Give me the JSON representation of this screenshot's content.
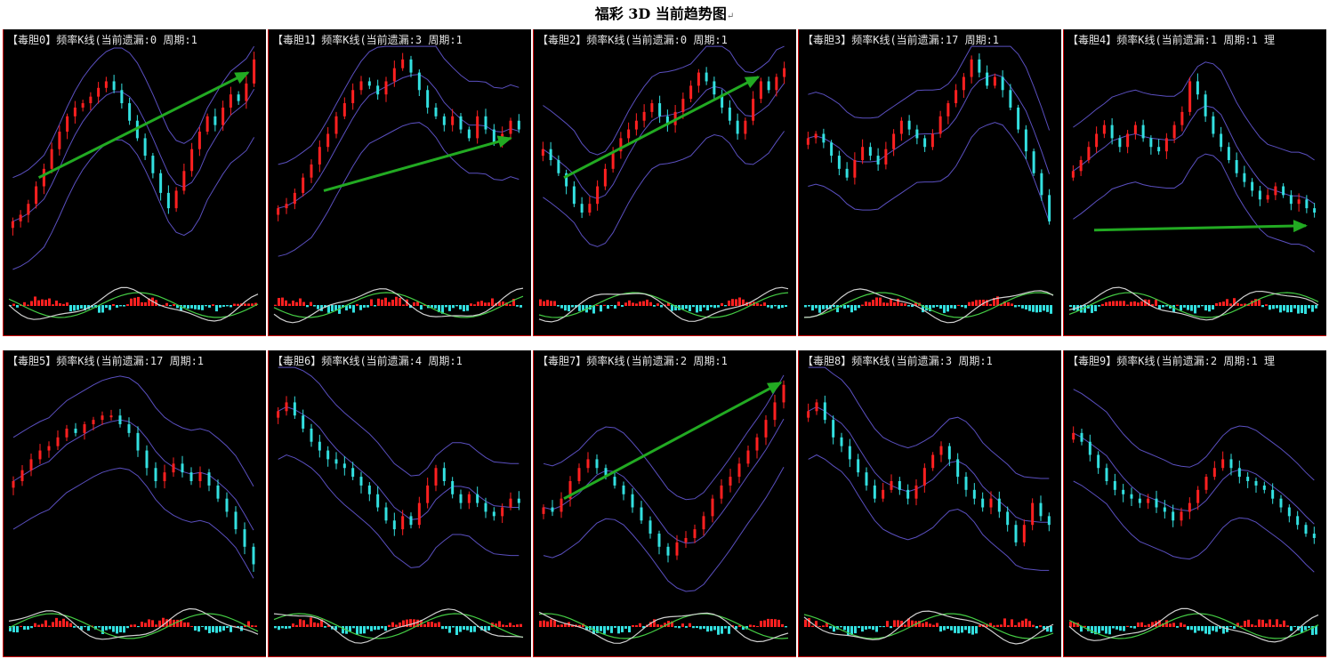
{
  "title": "福彩 3D 当前趋势图",
  "title_mark": "↵",
  "colors": {
    "background": "#000000",
    "border": "#cc0000",
    "up_candle": "#ff2020",
    "down_candle": "#33e0e0",
    "bands": "#5a4fbf",
    "trend_arrow": "#22aa22",
    "macd_white": "#d0d0d0",
    "macd_green": "#44cc44"
  },
  "chart_data": [
    {
      "type": "candlestick",
      "title": "【毒胆0】频率K线(当前遗漏:0 周期:1",
      "close": [
        0.22,
        0.25,
        0.3,
        0.38,
        0.46,
        0.55,
        0.63,
        0.7,
        0.74,
        0.76,
        0.79,
        0.83,
        0.86,
        0.82,
        0.76,
        0.68,
        0.6,
        0.52,
        0.44,
        0.35,
        0.28,
        0.36,
        0.45,
        0.55,
        0.63,
        0.7,
        0.66,
        0.74,
        0.8,
        0.77,
        0.85,
        0.96
      ],
      "arrow": [
        0.12,
        0.42,
        0.96,
        0.9
      ]
    },
    {
      "type": "candlestick",
      "title": "【毒胆1】频率K线(当前遗漏:3 周期:1",
      "close": [
        0.28,
        0.3,
        0.35,
        0.42,
        0.48,
        0.56,
        0.62,
        0.7,
        0.76,
        0.82,
        0.86,
        0.84,
        0.8,
        0.86,
        0.92,
        0.96,
        0.9,
        0.82,
        0.74,
        0.7,
        0.66,
        0.7,
        0.64,
        0.6,
        0.7,
        0.64,
        0.58,
        0.62,
        0.68,
        0.64
      ],
      "arrow": [
        0.2,
        0.36,
        0.95,
        0.6
      ]
    },
    {
      "type": "candlestick",
      "title": "【毒胆2】频率K线(当前遗漏:0 周期:1",
      "close": [
        0.55,
        0.5,
        0.44,
        0.38,
        0.3,
        0.26,
        0.3,
        0.38,
        0.46,
        0.54,
        0.6,
        0.64,
        0.68,
        0.72,
        0.76,
        0.7,
        0.66,
        0.72,
        0.78,
        0.84,
        0.9,
        0.86,
        0.8,
        0.74,
        0.68,
        0.62,
        0.68,
        0.78,
        0.86,
        0.82,
        0.88,
        0.92
      ],
      "arrow": [
        0.1,
        0.42,
        0.88,
        0.88
      ]
    },
    {
      "type": "candlestick",
      "title": "【毒胆3】频率K线(当前遗漏:17 周期:1",
      "close": [
        0.6,
        0.62,
        0.58,
        0.52,
        0.46,
        0.42,
        0.5,
        0.56,
        0.52,
        0.48,
        0.55,
        0.62,
        0.68,
        0.64,
        0.6,
        0.56,
        0.62,
        0.7,
        0.76,
        0.82,
        0.88,
        0.96,
        0.9,
        0.84,
        0.88,
        0.82,
        0.74,
        0.64,
        0.54,
        0.44,
        0.34,
        0.22
      ],
      "arrow": null
    },
    {
      "type": "candlestick",
      "title": "【毒胆4】频率K线(当前遗漏:1 周期:1 理",
      "close": [
        0.45,
        0.5,
        0.56,
        0.62,
        0.66,
        0.6,
        0.56,
        0.62,
        0.66,
        0.6,
        0.56,
        0.54,
        0.6,
        0.66,
        0.72,
        0.86,
        0.8,
        0.7,
        0.62,
        0.56,
        0.5,
        0.44,
        0.4,
        0.36,
        0.32,
        0.34,
        0.38,
        0.34,
        0.3,
        0.32,
        0.28,
        0.26
      ],
      "arrow": [
        0.1,
        0.18,
        0.95,
        0.2
      ]
    },
    {
      "type": "candlestick",
      "title": "【毒胆5】频率K线(当前遗漏:17 周期:1",
      "close": [
        0.5,
        0.55,
        0.6,
        0.64,
        0.66,
        0.7,
        0.74,
        0.72,
        0.76,
        0.78,
        0.8,
        0.8,
        0.76,
        0.72,
        0.64,
        0.56,
        0.5,
        0.54,
        0.58,
        0.54,
        0.5,
        0.54,
        0.48,
        0.42,
        0.36,
        0.28,
        0.2,
        0.12
      ],
      "arrow": null
    },
    {
      "type": "candlestick",
      "title": "【毒胆6】频率K线(当前遗漏:4 周期:1",
      "close": [
        0.82,
        0.86,
        0.8,
        0.74,
        0.68,
        0.64,
        0.6,
        0.58,
        0.56,
        0.52,
        0.48,
        0.44,
        0.38,
        0.32,
        0.28,
        0.34,
        0.3,
        0.4,
        0.48,
        0.56,
        0.5,
        0.44,
        0.4,
        0.44,
        0.4,
        0.36,
        0.34,
        0.38,
        0.42,
        0.4
      ],
      "arrow": null
    },
    {
      "type": "candlestick",
      "title": "【毒胆7】频率K线(当前遗漏:2 周期:1",
      "close": [
        0.38,
        0.36,
        0.42,
        0.5,
        0.56,
        0.6,
        0.56,
        0.52,
        0.48,
        0.44,
        0.38,
        0.32,
        0.26,
        0.2,
        0.16,
        0.22,
        0.24,
        0.28,
        0.34,
        0.42,
        0.48,
        0.52,
        0.58,
        0.64,
        0.7,
        0.78,
        0.86,
        0.94
      ],
      "arrow": [
        0.1,
        0.42,
        0.97,
        0.95
      ]
    },
    {
      "type": "candlestick",
      "title": "【毒胆8】频率K线(当前遗漏:3 周期:1",
      "close": [
        0.82,
        0.86,
        0.78,
        0.7,
        0.66,
        0.6,
        0.54,
        0.48,
        0.42,
        0.46,
        0.5,
        0.46,
        0.42,
        0.48,
        0.56,
        0.62,
        0.66,
        0.6,
        0.52,
        0.46,
        0.42,
        0.38,
        0.42,
        0.36,
        0.3,
        0.22,
        0.3,
        0.4,
        0.34,
        0.3
      ],
      "arrow": null
    },
    {
      "type": "candlestick",
      "title": "【毒胆9】频率K线(当前遗漏:2 周期:1 理",
      "close": [
        0.72,
        0.68,
        0.62,
        0.56,
        0.5,
        0.46,
        0.44,
        0.42,
        0.4,
        0.42,
        0.38,
        0.36,
        0.32,
        0.36,
        0.4,
        0.46,
        0.52,
        0.56,
        0.6,
        0.56,
        0.52,
        0.5,
        0.48,
        0.46,
        0.42,
        0.38,
        0.34,
        0.3,
        0.26,
        0.24
      ],
      "arrow": null
    }
  ]
}
